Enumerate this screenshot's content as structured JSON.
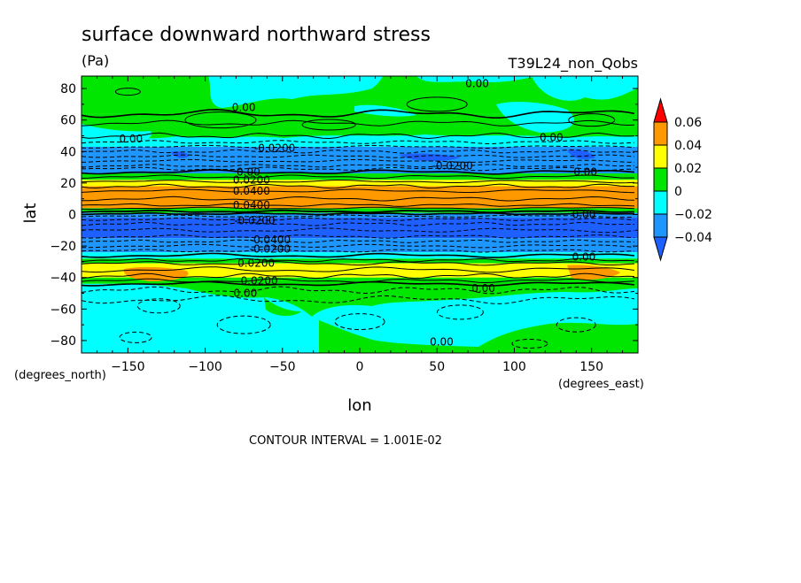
{
  "chart_data": {
    "type": "heatmap",
    "title": "surface downward northward stress",
    "units": "(Pa)",
    "run_label": "T39L24_non_Qobs",
    "xlabel": "lon",
    "ylabel": "lat",
    "x_units": "(degrees_east)",
    "y_units": "(degrees_north)",
    "footer": "CONTOUR INTERVAL = 1.001E-02",
    "xlim": [
      -180,
      180
    ],
    "ylim": [
      -87.9,
      87.9
    ],
    "x_ticks": [
      -150,
      -100,
      -50,
      0,
      50,
      100,
      150
    ],
    "x_tick_labels": [
      "−150",
      "−100",
      "−50",
      "0",
      "50",
      "100",
      "150"
    ],
    "y_ticks": [
      80,
      60,
      40,
      20,
      0,
      -20,
      -40,
      -60,
      -80
    ],
    "y_tick_labels": [
      "80",
      "60",
      "40",
      "20",
      "0",
      "−20",
      "−40",
      "−60",
      "−80"
    ],
    "colorbar": {
      "levels": [
        -0.04,
        -0.02,
        0,
        0.02,
        0.04,
        0.06
      ],
      "tick_labels": [
        "−0.04",
        "−0.02",
        "0",
        "0.02",
        "0.04",
        "0.06"
      ],
      "colors": [
        "#1e5fff",
        "#1e96ff",
        "#00ffff",
        "#00e600",
        "#ffff00",
        "#ff9900",
        "#ff0000"
      ]
    },
    "zonal_bands": [
      {
        "lat": [
          64,
          87.9
        ],
        "value": 0.002
      },
      {
        "lat": [
          47,
          64
        ],
        "value": 0.005
      },
      {
        "lat": [
          43,
          47
        ],
        "value": -0.005
      },
      {
        "lat": [
          30,
          43
        ],
        "value": -0.025
      },
      {
        "lat": [
          27,
          30
        ],
        "value": -0.01
      },
      {
        "lat": [
          22,
          27
        ],
        "value": 0.01
      },
      {
        "lat": [
          18,
          22
        ],
        "value": 0.03
      },
      {
        "lat": [
          4,
          18
        ],
        "value": 0.045
      },
      {
        "lat": [
          1,
          4
        ],
        "value": 0.01
      },
      {
        "lat": [
          -2,
          1
        ],
        "value": -0.03
      },
      {
        "lat": [
          -15,
          -2
        ],
        "value": -0.045
      },
      {
        "lat": [
          -24,
          -15
        ],
        "value": -0.03
      },
      {
        "lat": [
          -28,
          -24
        ],
        "value": -0.005
      },
      {
        "lat": [
          -31,
          -28
        ],
        "value": 0.01
      },
      {
        "lat": [
          -40,
          -31
        ],
        "value": 0.03
      },
      {
        "lat": [
          -44,
          -40
        ],
        "value": 0.01
      },
      {
        "lat": [
          -87.9,
          -44
        ],
        "value": -0.005
      }
    ],
    "contour_labels": [
      {
        "text": "0.00",
        "lon": 76,
        "lat": 83
      },
      {
        "text": "0.00",
        "lon": -75,
        "lat": 68
      },
      {
        "text": "0.00",
        "lon": -148,
        "lat": 48
      },
      {
        "text": "0.00",
        "lon": 124,
        "lat": 49
      },
      {
        "text": "-0.0200",
        "lon": -55,
        "lat": 42
      },
      {
        "text": "-0.0200",
        "lon": 60,
        "lat": 31
      },
      {
        "text": "0.00",
        "lon": 146,
        "lat": 27
      },
      {
        "text": "0.00",
        "lon": -72,
        "lat": 27
      },
      {
        "text": "0.0200",
        "lon": -70,
        "lat": 22
      },
      {
        "text": "0.0400",
        "lon": -70,
        "lat": 15
      },
      {
        "text": "0.0400",
        "lon": -70,
        "lat": 6
      },
      {
        "text": "-0.0200",
        "lon": -68,
        "lat": -4
      },
      {
        "text": "-0.0400",
        "lon": -58,
        "lat": -16
      },
      {
        "text": "-0.0200",
        "lon": -58,
        "lat": -22
      },
      {
        "text": "0.00",
        "lon": 145,
        "lat": 0
      },
      {
        "text": "0.00",
        "lon": 145,
        "lat": -27
      },
      {
        "text": "0.0200",
        "lon": -67,
        "lat": -31
      },
      {
        "text": "0.0200",
        "lon": -65,
        "lat": -42
      },
      {
        "text": "0.00",
        "lon": -74,
        "lat": -50
      },
      {
        "text": "0.00",
        "lon": 80,
        "lat": -47
      },
      {
        "text": "0.00",
        "lon": 53,
        "lat": -81
      }
    ]
  }
}
